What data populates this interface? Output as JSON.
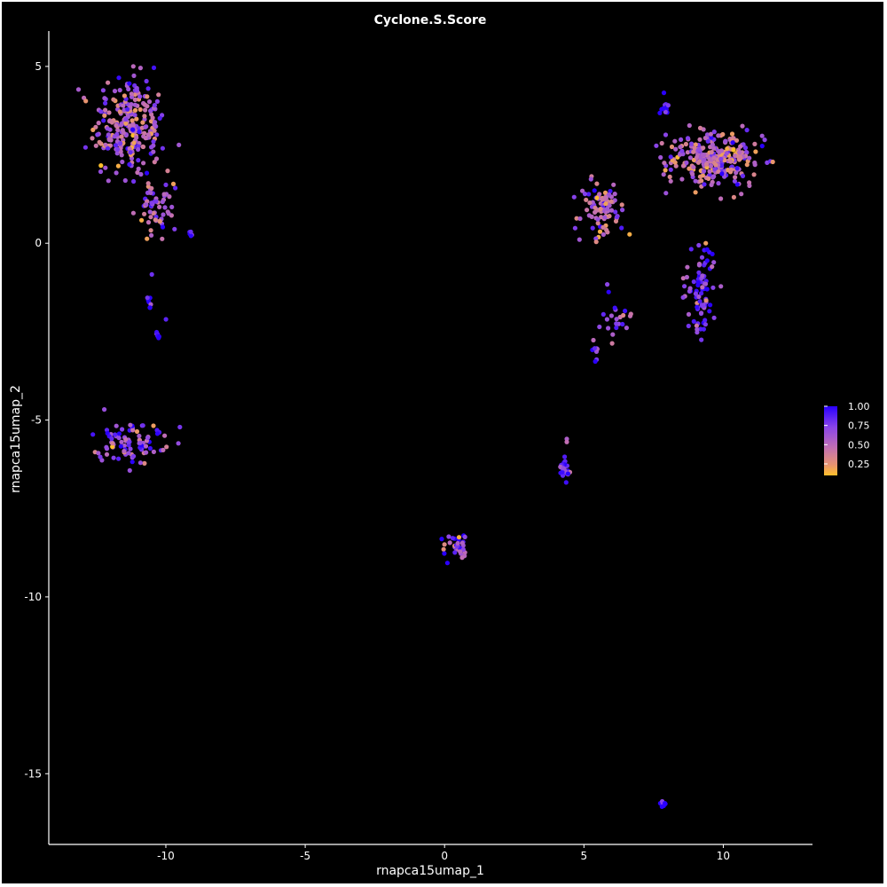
{
  "chart_data": {
    "type": "scatter",
    "title": "Cyclone.S.Score",
    "xlabel": "rnapca15umap_1",
    "ylabel": "rnapca15umap_2",
    "xlim": [
      -14.2,
      13.2
    ],
    "ylim": [
      -17.0,
      6.0
    ],
    "x_ticks": [
      -10,
      -5,
      0,
      5,
      10
    ],
    "x_tick_labels": [
      "-10",
      "-5",
      "0",
      "5",
      "10"
    ],
    "y_ticks": [
      5,
      0,
      -5,
      -10,
      -15
    ],
    "y_tick_labels": [
      "5",
      "0",
      "-5",
      "-10",
      "-15"
    ],
    "grid": false,
    "legend": {
      "position": "right",
      "type": "colorbar",
      "ticks": [
        1.0,
        0.75,
        0.5,
        0.25
      ],
      "tick_labels": [
        "1.00",
        "0.75",
        "0.50",
        "0.25"
      ],
      "range": [
        0.1,
        1.0
      ],
      "colors": {
        "high": "#2a00ff",
        "mid_high": "#8a44e8",
        "mid": "#c26fb3",
        "low": "#ffc02a"
      }
    },
    "clusters": [
      {
        "center": [
          -11.3,
          3.3
        ],
        "spread": [
          0.85,
          0.95
        ],
        "n": 260,
        "score_mean": 0.62
      },
      {
        "center": [
          -10.4,
          1.0
        ],
        "spread": [
          0.45,
          0.5
        ],
        "n": 60,
        "score_mean": 0.66
      },
      {
        "center": [
          -9.1,
          0.25
        ],
        "spread": [
          0.08,
          0.05
        ],
        "n": 5,
        "score_mean": 0.95
      },
      {
        "center": [
          -10.6,
          -1.7
        ],
        "spread": [
          0.08,
          0.15
        ],
        "n": 7,
        "score_mean": 0.95
      },
      {
        "center": [
          -10.3,
          -2.6
        ],
        "spread": [
          0.06,
          0.12
        ],
        "n": 6,
        "score_mean": 0.97
      },
      {
        "center": [
          -10.5,
          -0.9
        ],
        "spread": [
          0.03,
          0.05
        ],
        "n": 1,
        "score_mean": 0.5
      },
      {
        "center": [
          -10.0,
          -2.1
        ],
        "spread": [
          0.03,
          0.05
        ],
        "n": 1,
        "score_mean": 0.9
      },
      {
        "center": [
          -11.3,
          -5.6
        ],
        "spread": [
          0.8,
          0.4
        ],
        "n": 90,
        "score_mean": 0.75
      },
      {
        "center": [
          0.4,
          -8.6
        ],
        "spread": [
          0.28,
          0.28
        ],
        "n": 35,
        "score_mean": 0.72
      },
      {
        "center": [
          4.3,
          -6.4
        ],
        "spread": [
          0.12,
          0.3
        ],
        "n": 25,
        "score_mean": 0.82
      },
      {
        "center": [
          4.4,
          -5.6
        ],
        "spread": [
          0.03,
          0.05
        ],
        "n": 2,
        "score_mean": 0.6
      },
      {
        "center": [
          5.7,
          0.9
        ],
        "spread": [
          0.55,
          0.55
        ],
        "n": 95,
        "score_mean": 0.6
      },
      {
        "center": [
          6.2,
          -2.0
        ],
        "spread": [
          0.35,
          0.5
        ],
        "n": 22,
        "score_mean": 0.72
      },
      {
        "center": [
          5.4,
          -3.0
        ],
        "spread": [
          0.1,
          0.2
        ],
        "n": 8,
        "score_mean": 0.85
      },
      {
        "center": [
          9.7,
          2.4
        ],
        "spread": [
          1.15,
          0.55
        ],
        "n": 280,
        "score_mean": 0.62
      },
      {
        "center": [
          7.9,
          3.9
        ],
        "spread": [
          0.12,
          0.25
        ],
        "n": 12,
        "score_mean": 0.98
      },
      {
        "center": [
          9.2,
          -1.4
        ],
        "spread": [
          0.38,
          0.9
        ],
        "n": 85,
        "score_mean": 0.82
      },
      {
        "center": [
          7.8,
          -15.85
        ],
        "spread": [
          0.06,
          0.05
        ],
        "n": 7,
        "score_mean": 0.98
      }
    ]
  }
}
